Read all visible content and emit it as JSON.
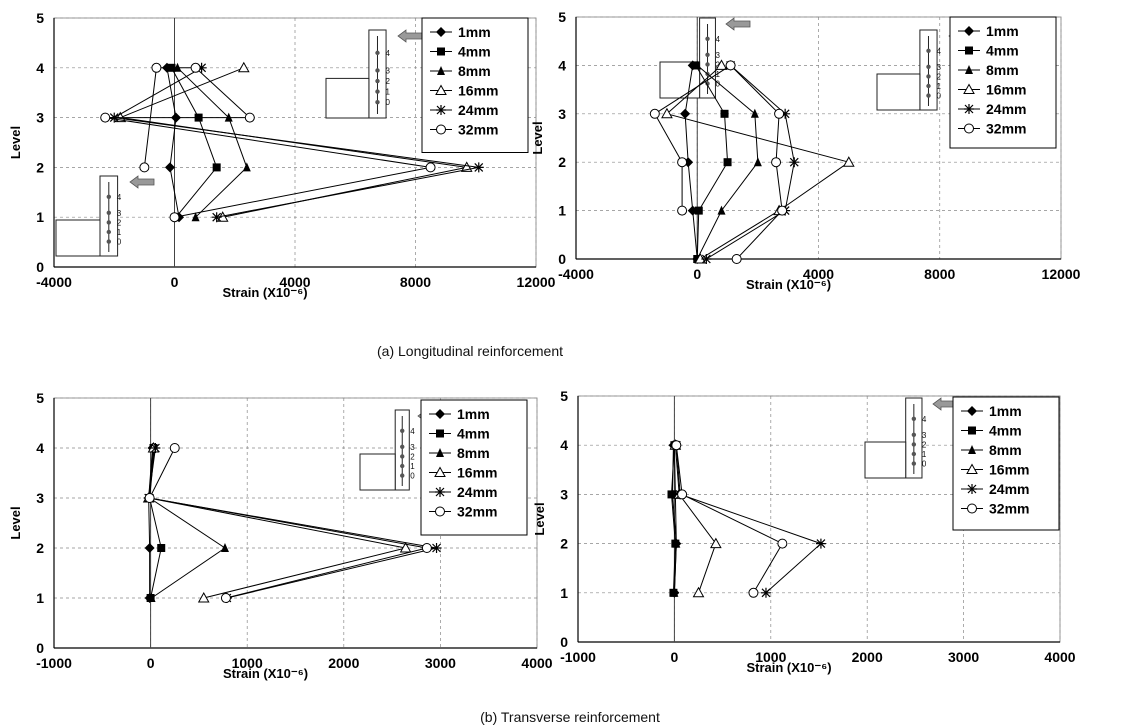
{
  "captions": {
    "a": "(a) Longitudinal reinforcement",
    "b": "(b) Transverse reinforcement"
  },
  "chart_data": [
    {
      "type": "line",
      "xlabel": "Strain (X10⁻⁶)",
      "ylabel": "Level",
      "xlim": [
        -4000,
        12000
      ],
      "xticks": [
        -4000,
        0,
        4000,
        8000,
        12000
      ],
      "ylim": [
        0,
        5
      ],
      "yticks": [
        0,
        1,
        2,
        3,
        4,
        5
      ],
      "grid": true,
      "legend_position": "top-right",
      "inset_levels": [
        "4",
        "3",
        "2",
        "1",
        "0"
      ],
      "series": [
        {
          "name": "1mm",
          "marker": "diamond",
          "x": [
            150,
            -150,
            50,
            -250
          ],
          "y": [
            1,
            2,
            3,
            4
          ]
        },
        {
          "name": "4mm",
          "marker": "square",
          "x": [
            50,
            1400,
            800,
            -100
          ],
          "y": [
            1,
            2,
            3,
            4
          ]
        },
        {
          "name": "8mm",
          "marker": "triangle",
          "x": [
            700,
            2400,
            1800,
            100
          ],
          "y": [
            1,
            2,
            3,
            4
          ]
        },
        {
          "name": "16mm",
          "marker": "triangle-open",
          "x": [
            1600,
            9700,
            -1800,
            2300
          ],
          "y": [
            1,
            2,
            3,
            4
          ]
        },
        {
          "name": "24mm",
          "marker": "asterisk",
          "x": [
            1400,
            10100,
            -2000,
            900
          ],
          "y": [
            1,
            2,
            3,
            4
          ]
        },
        {
          "name": "32mm",
          "marker": "circle-open",
          "x": [
            0,
            8500,
            -2300,
            2500,
            700,
            -600,
            -1000
          ],
          "y": [
            1,
            2,
            3,
            3,
            4,
            4,
            2
          ]
        }
      ]
    },
    {
      "type": "line",
      "xlabel": "Strain (X10⁻⁶)",
      "ylabel": "Level",
      "xlim": [
        -4000,
        12000
      ],
      "xticks": [
        -4000,
        0,
        4000,
        8000,
        12000
      ],
      "ylim": [
        0,
        5
      ],
      "yticks": [
        0,
        1,
        2,
        3,
        4,
        5
      ],
      "grid": true,
      "legend_position": "top-right",
      "inset_levels": [
        "4",
        "3",
        "2",
        "1",
        "0"
      ],
      "series": [
        {
          "name": "1mm",
          "marker": "diamond",
          "x": [
            0,
            -150,
            -300,
            -400,
            -150
          ],
          "y": [
            0,
            1,
            2,
            3,
            4
          ]
        },
        {
          "name": "4mm",
          "marker": "square",
          "x": [
            0,
            50,
            1000,
            900,
            -50
          ],
          "y": [
            0,
            1,
            2,
            3,
            4
          ]
        },
        {
          "name": "8mm",
          "marker": "triangle",
          "x": [
            0,
            800,
            2000,
            1900,
            0
          ],
          "y": [
            0,
            1,
            2,
            3,
            4
          ]
        },
        {
          "name": "16mm",
          "marker": "triangle-open",
          "x": [
            100,
            2700,
            5000,
            -1000,
            800
          ],
          "y": [
            0,
            1,
            2,
            3,
            4
          ]
        },
        {
          "name": "24mm",
          "marker": "asterisk",
          "x": [
            300,
            2900,
            3200,
            2900,
            1100
          ],
          "y": [
            0,
            1,
            2,
            3,
            4
          ]
        },
        {
          "name": "32mm",
          "marker": "circle-open",
          "x": [
            1300,
            2800,
            2600,
            2700,
            1100,
            -1400,
            -500,
            -500
          ],
          "y": [
            0,
            1,
            2,
            3,
            4,
            3,
            2,
            1
          ]
        }
      ]
    },
    {
      "type": "line",
      "xlabel": "Strain (X10⁻⁶)",
      "ylabel": "Level",
      "xlim": [
        -1000,
        4000
      ],
      "xticks": [
        -1000,
        0,
        1000,
        2000,
        3000,
        4000
      ],
      "ylim": [
        0,
        5
      ],
      "yticks": [
        0,
        1,
        2,
        3,
        4,
        5
      ],
      "grid": true,
      "legend_position": "top-right",
      "inset_levels": [
        "4",
        "3",
        "2",
        "1",
        "0"
      ],
      "series": [
        {
          "name": "1mm",
          "marker": "diamond",
          "x": [
            -10,
            -10,
            -20,
            20
          ],
          "y": [
            1,
            2,
            3,
            4
          ]
        },
        {
          "name": "4mm",
          "marker": "square",
          "x": [
            0,
            110,
            -10,
            30
          ],
          "y": [
            1,
            2,
            3,
            4
          ]
        },
        {
          "name": "8mm",
          "marker": "triangle",
          "x": [
            10,
            770,
            -10,
            40
          ],
          "y": [
            1,
            2,
            3,
            4
          ]
        },
        {
          "name": "16mm",
          "marker": "triangle-open",
          "x": [
            550,
            2640,
            -20,
            30
          ],
          "y": [
            1,
            2,
            3,
            4
          ]
        },
        {
          "name": "24mm",
          "marker": "asterisk",
          "x": [
            790,
            2960,
            -20,
            50
          ],
          "y": [
            1,
            2,
            3,
            4
          ]
        },
        {
          "name": "32mm",
          "marker": "circle-open",
          "x": [
            780,
            2860,
            -10,
            250
          ],
          "y": [
            1,
            2,
            3,
            4
          ]
        }
      ]
    },
    {
      "type": "line",
      "xlabel": "Strain (X10⁻⁶)",
      "ylabel": "Level",
      "xlim": [
        -1000,
        4000
      ],
      "xticks": [
        -1000,
        0,
        1000,
        2000,
        3000,
        4000
      ],
      "ylim": [
        0,
        5
      ],
      "yticks": [
        0,
        1,
        2,
        3,
        4,
        5
      ],
      "grid": true,
      "legend_position": "top-right",
      "inset_levels": [
        "4",
        "3",
        "2",
        "1",
        "0"
      ],
      "series": [
        {
          "name": "1mm",
          "marker": "diamond",
          "x": [
            0,
            20,
            -20,
            -10
          ],
          "y": [
            1,
            2,
            3,
            4
          ]
        },
        {
          "name": "4mm",
          "marker": "square",
          "x": [
            -10,
            10,
            -30,
            0
          ],
          "y": [
            1,
            2,
            3,
            4
          ]
        },
        {
          "name": "8mm",
          "marker": "triangle",
          "x": [
            0,
            20,
            10,
            0
          ],
          "y": [
            1,
            2,
            3,
            4
          ]
        },
        {
          "name": "16mm",
          "marker": "triangle-open",
          "x": [
            250,
            430,
            50,
            10
          ],
          "y": [
            1,
            2,
            3,
            4
          ]
        },
        {
          "name": "24mm",
          "marker": "asterisk",
          "x": [
            950,
            1520,
            60,
            20
          ],
          "y": [
            1,
            2,
            3,
            4
          ]
        },
        {
          "name": "32mm",
          "marker": "circle-open",
          "x": [
            820,
            1120,
            80,
            20
          ],
          "y": [
            1,
            2,
            3,
            4
          ]
        }
      ]
    }
  ]
}
